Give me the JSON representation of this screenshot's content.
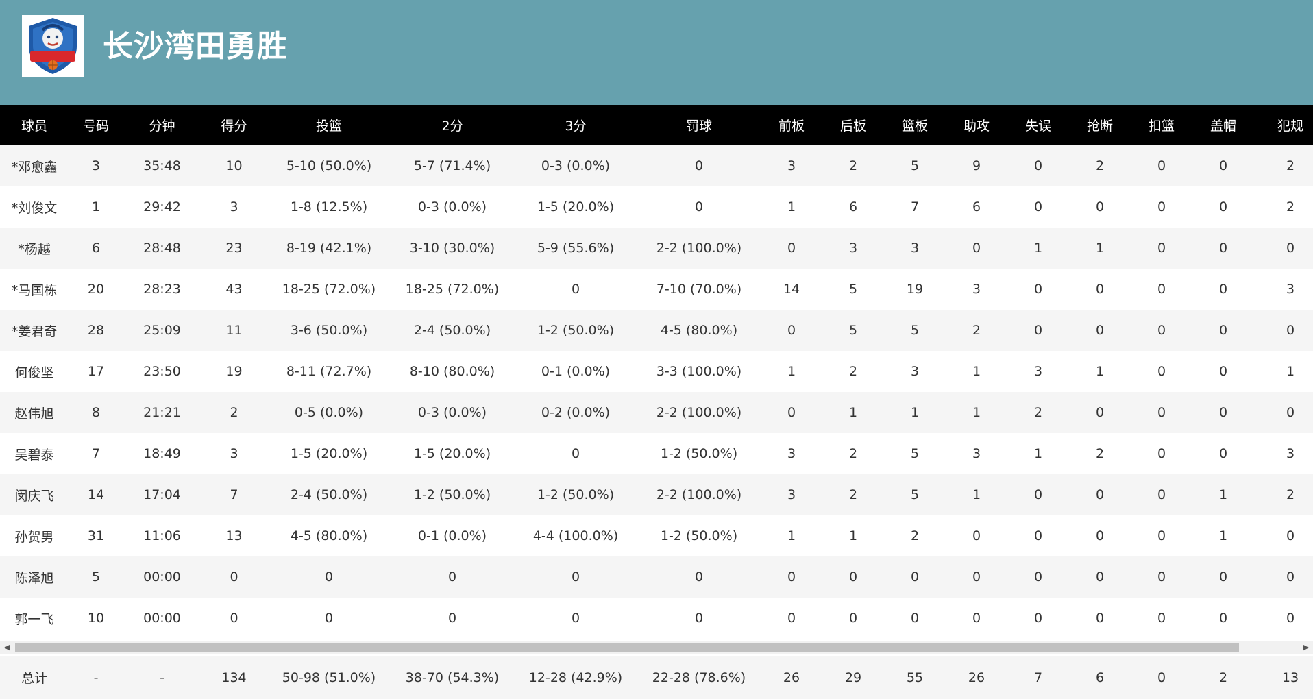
{
  "team": {
    "name": "长沙湾田勇胜",
    "logo_icon": "lion-shield-logo",
    "logo_text": "湖南★勇胜"
  },
  "columns": [
    "球员",
    "号码",
    "分钟",
    "得分",
    "投篮",
    "2分",
    "3分",
    "罚球",
    "前板",
    "后板",
    "篮板",
    "助攻",
    "失误",
    "抢断",
    "扣篮",
    "盖帽",
    "犯规"
  ],
  "players": [
    [
      "*邓愈鑫",
      "3",
      "35:48",
      "10",
      "5-10 (50.0%)",
      "5-7 (71.4%)",
      "0-3 (0.0%)",
      "0",
      "3",
      "2",
      "5",
      "9",
      "0",
      "2",
      "0",
      "0",
      "2"
    ],
    [
      "*刘俊文",
      "1",
      "29:42",
      "3",
      "1-8 (12.5%)",
      "0-3 (0.0%)",
      "1-5 (20.0%)",
      "0",
      "1",
      "6",
      "7",
      "6",
      "0",
      "0",
      "0",
      "0",
      "2"
    ],
    [
      "*杨越",
      "6",
      "28:48",
      "23",
      "8-19 (42.1%)",
      "3-10 (30.0%)",
      "5-9 (55.6%)",
      "2-2 (100.0%)",
      "0",
      "3",
      "3",
      "0",
      "1",
      "1",
      "0",
      "0",
      "0"
    ],
    [
      "*马国栋",
      "20",
      "28:23",
      "43",
      "18-25 (72.0%)",
      "18-25 (72.0%)",
      "0",
      "7-10 (70.0%)",
      "14",
      "5",
      "19",
      "3",
      "0",
      "0",
      "0",
      "0",
      "3"
    ],
    [
      "*姜君奇",
      "28",
      "25:09",
      "11",
      "3-6 (50.0%)",
      "2-4 (50.0%)",
      "1-2 (50.0%)",
      "4-5 (80.0%)",
      "0",
      "5",
      "5",
      "2",
      "0",
      "0",
      "0",
      "0",
      "0"
    ],
    [
      "何俊坚",
      "17",
      "23:50",
      "19",
      "8-11 (72.7%)",
      "8-10 (80.0%)",
      "0-1 (0.0%)",
      "3-3 (100.0%)",
      "1",
      "2",
      "3",
      "1",
      "3",
      "1",
      "0",
      "0",
      "1"
    ],
    [
      "赵伟旭",
      "8",
      "21:21",
      "2",
      "0-5 (0.0%)",
      "0-3 (0.0%)",
      "0-2 (0.0%)",
      "2-2 (100.0%)",
      "0",
      "1",
      "1",
      "1",
      "2",
      "0",
      "0",
      "0",
      "0"
    ],
    [
      "吴碧泰",
      "7",
      "18:49",
      "3",
      "1-5 (20.0%)",
      "1-5 (20.0%)",
      "0",
      "1-2 (50.0%)",
      "3",
      "2",
      "5",
      "3",
      "1",
      "2",
      "0",
      "0",
      "3"
    ],
    [
      "闵庆飞",
      "14",
      "17:04",
      "7",
      "2-4 (50.0%)",
      "1-2 (50.0%)",
      "1-2 (50.0%)",
      "2-2 (100.0%)",
      "3",
      "2",
      "5",
      "1",
      "0",
      "0",
      "0",
      "1",
      "2"
    ],
    [
      "孙贺男",
      "31",
      "11:06",
      "13",
      "4-5 (80.0%)",
      "0-1 (0.0%)",
      "4-4 (100.0%)",
      "1-2 (50.0%)",
      "1",
      "1",
      "2",
      "0",
      "0",
      "0",
      "0",
      "1",
      "0"
    ],
    [
      "陈泽旭",
      "5",
      "00:00",
      "0",
      "0",
      "0",
      "0",
      "0",
      "0",
      "0",
      "0",
      "0",
      "0",
      "0",
      "0",
      "0",
      "0"
    ],
    [
      "郭一飞",
      "10",
      "00:00",
      "0",
      "0",
      "0",
      "0",
      "0",
      "0",
      "0",
      "0",
      "0",
      "0",
      "0",
      "0",
      "0",
      "0"
    ]
  ],
  "totals": [
    "总计",
    "-",
    "-",
    "134",
    "50-98 (51.0%)",
    "38-70 (54.3%)",
    "12-28 (42.9%)",
    "22-28 (78.6%)",
    "26",
    "29",
    "55",
    "26",
    "7",
    "6",
    "0",
    "2",
    "13"
  ],
  "scrollbar": {
    "left_arrow": "◀",
    "right_arrow": "▶"
  },
  "colors": {
    "header_bg": "#66a1ae",
    "table_header_bg": "#000000",
    "row_alt_bg": "#f5f5f5",
    "total_bg": "#ececec"
  }
}
